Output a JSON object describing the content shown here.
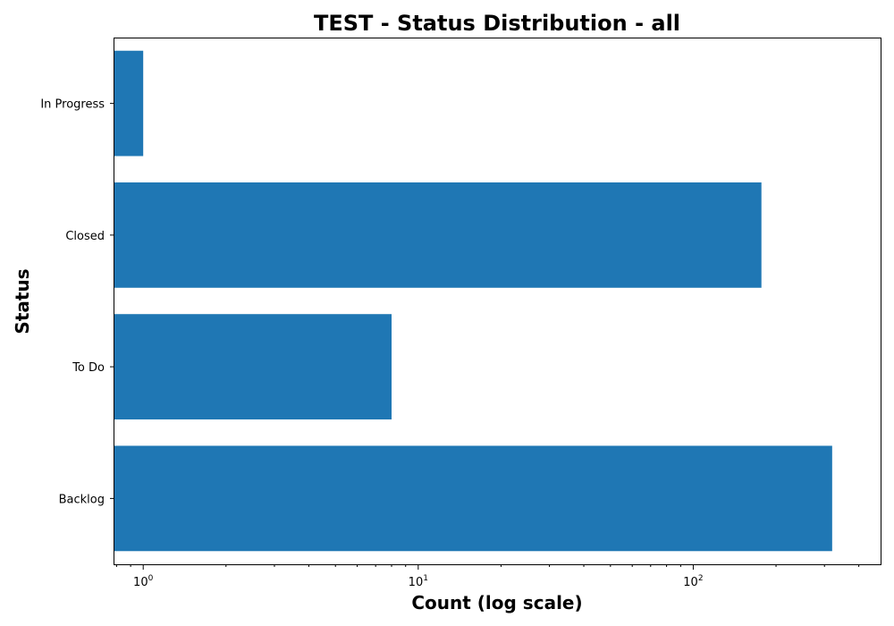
{
  "chart_data": {
    "type": "bar",
    "orientation": "horizontal",
    "title": "TEST - Status Distribution - all",
    "xlabel": "Count (log scale)",
    "ylabel": "Status",
    "x_scale": "log",
    "xlim": [
      0.78,
      480
    ],
    "categories": [
      "Backlog",
      "To Do",
      "Closed",
      "In Progress"
    ],
    "values": [
      320,
      8,
      177,
      1
    ],
    "color": "#1f77b4",
    "major_ticks": [
      {
        "value": 1,
        "base": "10",
        "exponent": "0"
      },
      {
        "value": 10,
        "base": "10",
        "exponent": "1"
      },
      {
        "value": 100,
        "base": "10",
        "exponent": "2"
      }
    ],
    "grid": false,
    "legend": "none"
  }
}
